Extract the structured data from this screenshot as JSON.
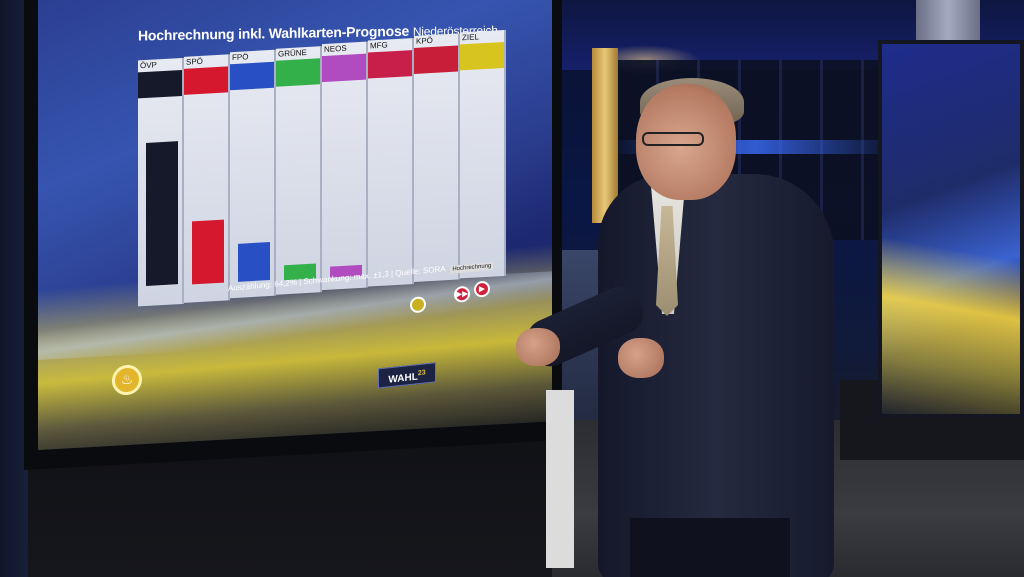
{
  "screen": {
    "title": "Hochrechnung inkl. Wahlkarten-Prognose",
    "region": "Niederösterreich",
    "footnote": "Auszählung: 64,2% | Schwankung: max. ±1,3 | Quelle: SORA",
    "source_badge": "Hochrechnung",
    "logo_text": "WAHL",
    "logo_year": "23"
  },
  "chart_data": {
    "type": "bar",
    "categories": [
      "ÖVP",
      "SPÖ",
      "FPÖ",
      "GRÜNE",
      "NEOS",
      "MFG",
      "KPÖ",
      "ZIEL"
    ],
    "values": [
      0.75,
      0.33,
      0.2,
      0.08,
      0.06,
      0,
      0,
      0
    ],
    "colors": [
      "#15192a",
      "#d6182e",
      "#2850c4",
      "#34b04a",
      "#b04bc0",
      "#c81e4a",
      "#c81e3a",
      "#d8c41e"
    ],
    "title": "Hochrechnung inkl. Wahlkarten-Prognose Niederösterreich",
    "ylim": [
      0,
      1
    ]
  },
  "colors": {
    "accent_yellow": "#e3b52a",
    "accent_red": "#d0213c",
    "screen_blue": "#2b3f92"
  },
  "icons": [
    "bell-icon",
    "play-icon",
    "fast-forward-icon",
    "circle-icon"
  ]
}
